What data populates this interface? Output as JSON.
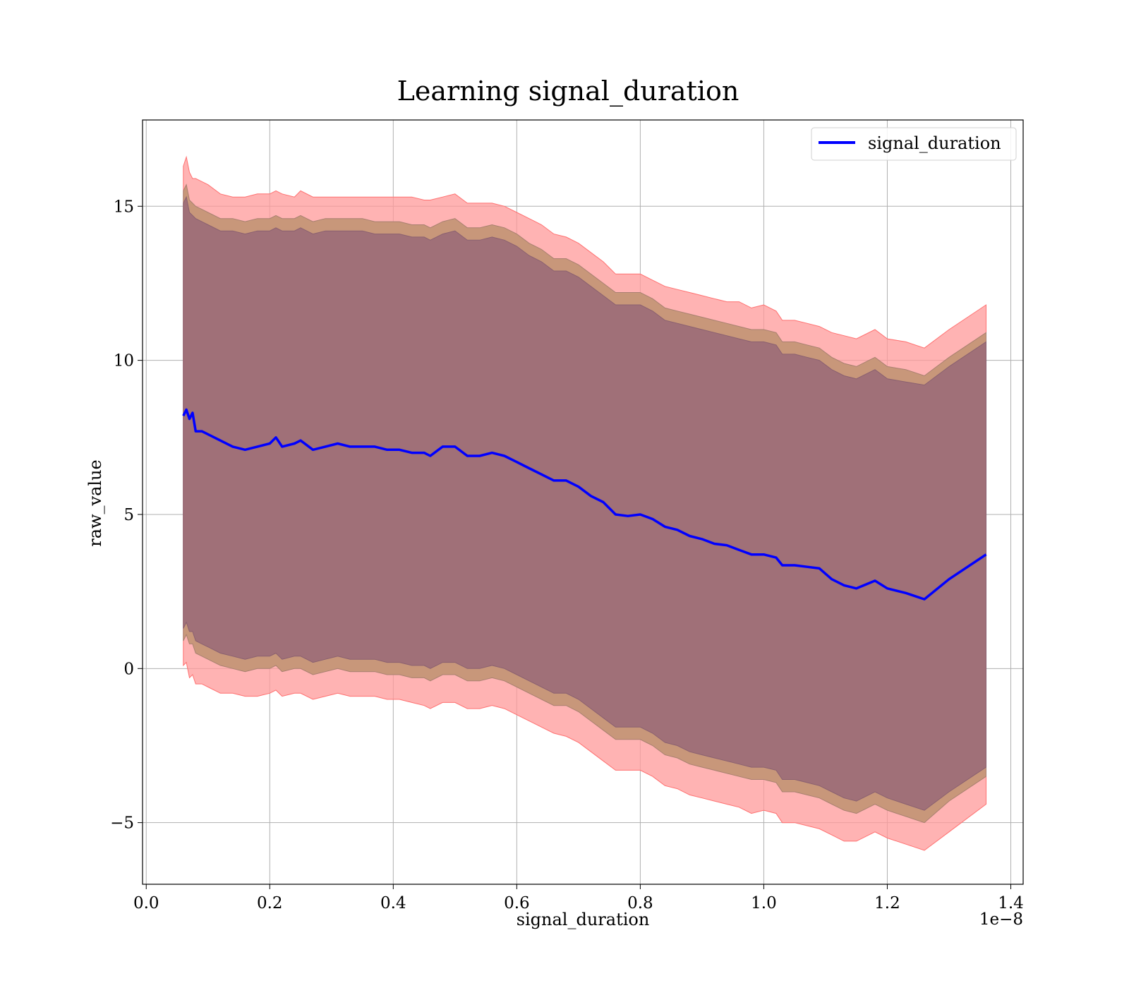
{
  "chart_data": {
    "type": "line",
    "title": "Learning signal_duration",
    "xlabel": "signal_duration",
    "ylabel": "raw_value",
    "x_offset_label": "1e−8",
    "xlim": [
      -0.006,
      1.42
    ],
    "ylim": [
      -7.0,
      17.8
    ],
    "x_ticks": [
      0.0,
      0.2,
      0.4,
      0.6,
      0.8,
      1.0,
      1.2,
      1.4
    ],
    "x_tick_labels": [
      "0.0",
      "0.2",
      "0.4",
      "0.6",
      "0.8",
      "1.0",
      "1.2",
      "1.4"
    ],
    "y_ticks": [
      -5,
      0,
      5,
      10,
      15
    ],
    "y_tick_labels": [
      "−5",
      "0",
      "5",
      "10",
      "15"
    ],
    "grid": true,
    "legend_position": "top-right",
    "colors": {
      "line": "#0000ff",
      "outer_band": "#ff9999",
      "middle_band": "#c8977a",
      "inner_band": "#a07078",
      "grid": "#b0b0b0"
    },
    "series": [
      {
        "name": "signal_duration",
        "x": [
          0.06,
          0.065,
          0.07,
          0.075,
          0.08,
          0.09,
          0.1,
          0.12,
          0.14,
          0.16,
          0.18,
          0.2,
          0.21,
          0.22,
          0.24,
          0.25,
          0.27,
          0.29,
          0.31,
          0.33,
          0.35,
          0.37,
          0.39,
          0.41,
          0.43,
          0.45,
          0.46,
          0.48,
          0.5,
          0.52,
          0.54,
          0.56,
          0.58,
          0.6,
          0.62,
          0.64,
          0.66,
          0.68,
          0.7,
          0.72,
          0.74,
          0.76,
          0.78,
          0.8,
          0.82,
          0.84,
          0.86,
          0.88,
          0.9,
          0.92,
          0.94,
          0.96,
          0.98,
          1.0,
          1.02,
          1.03,
          1.05,
          1.07,
          1.09,
          1.11,
          1.13,
          1.15,
          1.18,
          1.2,
          1.23,
          1.26,
          1.3,
          1.36
        ],
        "y": [
          8.2,
          8.4,
          8.1,
          8.3,
          7.7,
          7.7,
          7.6,
          7.4,
          7.2,
          7.1,
          7.2,
          7.3,
          7.5,
          7.2,
          7.3,
          7.4,
          7.1,
          7.2,
          7.3,
          7.2,
          7.2,
          7.2,
          7.1,
          7.1,
          7.0,
          7.0,
          6.9,
          7.2,
          7.2,
          6.9,
          6.9,
          7.0,
          6.9,
          6.7,
          6.5,
          6.3,
          6.1,
          6.1,
          5.9,
          5.6,
          5.4,
          5.0,
          4.95,
          5.0,
          4.85,
          4.6,
          4.5,
          4.3,
          4.2,
          4.05,
          4.0,
          3.85,
          3.7,
          3.7,
          3.6,
          3.35,
          3.35,
          3.3,
          3.25,
          2.9,
          2.7,
          2.6,
          2.85,
          2.6,
          2.45,
          2.25,
          2.9,
          3.7
        ],
        "outer_upper": [
          16.3,
          16.6,
          16.1,
          15.9,
          15.9,
          15.8,
          15.7,
          15.4,
          15.3,
          15.3,
          15.4,
          15.4,
          15.5,
          15.4,
          15.3,
          15.5,
          15.3,
          15.3,
          15.3,
          15.3,
          15.3,
          15.3,
          15.3,
          15.3,
          15.3,
          15.2,
          15.2,
          15.3,
          15.4,
          15.1,
          15.1,
          15.1,
          15.0,
          14.8,
          14.6,
          14.4,
          14.1,
          14.0,
          13.8,
          13.5,
          13.2,
          12.8,
          12.8,
          12.8,
          12.6,
          12.4,
          12.3,
          12.2,
          12.1,
          12.0,
          11.9,
          11.9,
          11.7,
          11.8,
          11.6,
          11.3,
          11.3,
          11.2,
          11.1,
          10.9,
          10.8,
          10.7,
          11.0,
          10.7,
          10.6,
          10.4,
          11.0,
          11.8
        ],
        "outer_lower": [
          0.1,
          0.2,
          -0.3,
          -0.2,
          -0.5,
          -0.5,
          -0.6,
          -0.8,
          -0.8,
          -0.9,
          -0.9,
          -0.8,
          -0.7,
          -0.9,
          -0.8,
          -0.8,
          -1.0,
          -0.9,
          -0.8,
          -0.9,
          -0.9,
          -0.9,
          -1.0,
          -1.0,
          -1.1,
          -1.2,
          -1.3,
          -1.1,
          -1.1,
          -1.3,
          -1.3,
          -1.2,
          -1.3,
          -1.5,
          -1.7,
          -1.9,
          -2.1,
          -2.2,
          -2.4,
          -2.7,
          -3.0,
          -3.3,
          -3.3,
          -3.3,
          -3.5,
          -3.8,
          -3.9,
          -4.1,
          -4.2,
          -4.3,
          -4.4,
          -4.5,
          -4.7,
          -4.6,
          -4.7,
          -5.0,
          -5.0,
          -5.1,
          -5.2,
          -5.4,
          -5.6,
          -5.6,
          -5.3,
          -5.5,
          -5.7,
          -5.9,
          -5.3,
          -4.4
        ],
        "mid_upper": [
          15.5,
          15.7,
          15.2,
          15.1,
          15.0,
          14.9,
          14.8,
          14.6,
          14.6,
          14.5,
          14.6,
          14.6,
          14.7,
          14.6,
          14.6,
          14.7,
          14.5,
          14.6,
          14.6,
          14.6,
          14.6,
          14.5,
          14.5,
          14.5,
          14.4,
          14.4,
          14.3,
          14.5,
          14.6,
          14.3,
          14.3,
          14.4,
          14.3,
          14.1,
          13.8,
          13.6,
          13.3,
          13.3,
          13.1,
          12.8,
          12.5,
          12.2,
          12.2,
          12.2,
          12.0,
          11.7,
          11.6,
          11.5,
          11.4,
          11.3,
          11.2,
          11.1,
          11.0,
          11.0,
          10.9,
          10.6,
          10.6,
          10.5,
          10.4,
          10.1,
          9.9,
          9.8,
          10.1,
          9.8,
          9.7,
          9.5,
          10.1,
          10.9
        ],
        "mid_lower": [
          0.9,
          1.1,
          0.8,
          0.8,
          0.5,
          0.4,
          0.3,
          0.1,
          0.0,
          -0.1,
          0.0,
          0.0,
          0.1,
          -0.1,
          0.0,
          0.0,
          -0.2,
          -0.1,
          0.0,
          -0.1,
          -0.1,
          -0.1,
          -0.2,
          -0.2,
          -0.3,
          -0.3,
          -0.4,
          -0.2,
          -0.2,
          -0.4,
          -0.4,
          -0.3,
          -0.4,
          -0.6,
          -0.8,
          -1.0,
          -1.2,
          -1.2,
          -1.4,
          -1.7,
          -2.0,
          -2.3,
          -2.3,
          -2.3,
          -2.5,
          -2.8,
          -2.9,
          -3.1,
          -3.2,
          -3.3,
          -3.4,
          -3.5,
          -3.6,
          -3.6,
          -3.7,
          -4.0,
          -4.0,
          -4.1,
          -4.2,
          -4.4,
          -4.6,
          -4.7,
          -4.4,
          -4.6,
          -4.8,
          -5.0,
          -4.3,
          -3.5
        ],
        "inner_upper": [
          15.1,
          15.3,
          14.8,
          14.7,
          14.6,
          14.5,
          14.4,
          14.2,
          14.2,
          14.1,
          14.2,
          14.2,
          14.3,
          14.2,
          14.2,
          14.3,
          14.1,
          14.2,
          14.2,
          14.2,
          14.2,
          14.1,
          14.1,
          14.1,
          14.0,
          14.0,
          13.9,
          14.1,
          14.2,
          13.9,
          13.9,
          14.0,
          13.9,
          13.7,
          13.4,
          13.2,
          12.9,
          12.9,
          12.7,
          12.4,
          12.1,
          11.8,
          11.8,
          11.8,
          11.6,
          11.3,
          11.2,
          11.1,
          11.0,
          10.9,
          10.8,
          10.7,
          10.6,
          10.6,
          10.5,
          10.2,
          10.2,
          10.1,
          10.0,
          9.7,
          9.5,
          9.4,
          9.7,
          9.4,
          9.3,
          9.2,
          9.8,
          10.6
        ],
        "inner_lower": [
          1.3,
          1.5,
          1.2,
          1.2,
          0.9,
          0.8,
          0.7,
          0.5,
          0.4,
          0.3,
          0.4,
          0.4,
          0.5,
          0.3,
          0.4,
          0.4,
          0.2,
          0.3,
          0.4,
          0.3,
          0.3,
          0.3,
          0.2,
          0.2,
          0.1,
          0.1,
          0.0,
          0.2,
          0.2,
          0.0,
          0.0,
          0.1,
          0.0,
          -0.2,
          -0.4,
          -0.6,
          -0.8,
          -0.8,
          -1.0,
          -1.3,
          -1.6,
          -1.9,
          -1.9,
          -1.9,
          -2.1,
          -2.4,
          -2.5,
          -2.7,
          -2.8,
          -2.9,
          -3.0,
          -3.1,
          -3.2,
          -3.2,
          -3.3,
          -3.6,
          -3.6,
          -3.7,
          -3.8,
          -4.0,
          -4.2,
          -4.3,
          -4.0,
          -4.2,
          -4.4,
          -4.6,
          -4.0,
          -3.2
        ]
      }
    ]
  }
}
